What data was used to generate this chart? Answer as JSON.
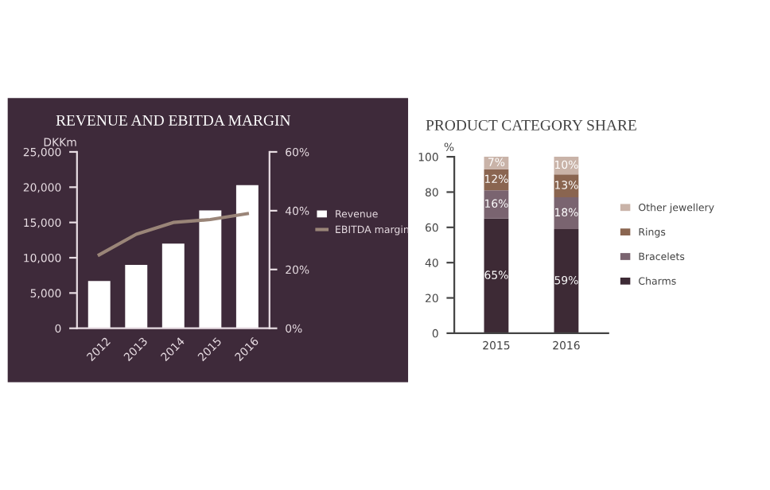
{
  "chart_data": [
    {
      "type": "bar",
      "title": "REVENUE AND EBITDA MARGIN",
      "ylabel": "DKKm",
      "categories": [
        "2012",
        "2013",
        "2014",
        "2015",
        "2016"
      ],
      "series": [
        {
          "name": "Revenue",
          "color": "#ffffff",
          "values": [
            6700,
            9000,
            12000,
            16700,
            20300
          ]
        },
        {
          "name": "EBITDA margin",
          "type": "line",
          "axis": "y2",
          "color": "#9a8578",
          "values": [
            25,
            32,
            36,
            37,
            39
          ]
        }
      ],
      "ylim": [
        0,
        25000
      ],
      "yticks": [
        0,
        {
          "value": 5000,
          "label": "5,000"
        },
        {
          "value": 10000,
          "label": "10,000"
        },
        {
          "value": 15000,
          "label": "15,000"
        },
        {
          "value": 20000,
          "label": "20,000"
        },
        {
          "value": 25000,
          "label": "25,000"
        }
      ],
      "y2lim": [
        0,
        60
      ],
      "y2ticks": [
        {
          "value": 0,
          "label": "0%"
        },
        {
          "value": 20,
          "label": "20%"
        },
        {
          "value": 40,
          "label": "40%"
        },
        {
          "value": 60,
          "label": "60%"
        }
      ],
      "legend": "right",
      "grid": false
    },
    {
      "type": "bar",
      "title": "PRODUCT CATEGORY SHARE",
      "ylabel": "%",
      "stacked": true,
      "categories": [
        "2015",
        "2016"
      ],
      "series": [
        {
          "name": "Charms",
          "color": "#3d2a35",
          "values": [
            65,
            59
          ],
          "value_labels": [
            "65%",
            "59%"
          ]
        },
        {
          "name": "Bracelets",
          "color": "#7a6470",
          "values": [
            16,
            18
          ],
          "value_labels": [
            "16%",
            "18%"
          ]
        },
        {
          "name": "Rings",
          "color": "#8a6550",
          "values": [
            12,
            13
          ],
          "value_labels": [
            "12%",
            "13%"
          ]
        },
        {
          "name": "Other jewellery",
          "color": "#c9b3a8",
          "values": [
            7,
            10
          ],
          "value_labels": [
            "7%",
            "10%"
          ]
        }
      ],
      "ylim": [
        0,
        100
      ],
      "yticks": [
        0,
        20,
        40,
        60,
        80,
        100
      ],
      "legend": "right",
      "grid": false
    }
  ]
}
